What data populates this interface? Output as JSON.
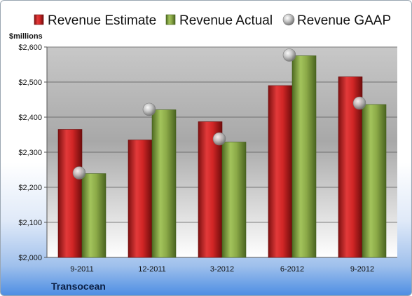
{
  "chart_data": {
    "type": "bar",
    "company": "Transocean",
    "ylabel": "$millions",
    "categories": [
      "9-2011",
      "12-2011",
      "3-2012",
      "6-2012",
      "9-2012"
    ],
    "ylim": [
      2000,
      2600
    ],
    "y_ticks": [
      "$2,000",
      "$2,100",
      "$2,200",
      "$2,300",
      "$2,400",
      "$2,500",
      "$2,600"
    ],
    "grid": true,
    "legend_position": "top",
    "series": [
      {
        "name": "Revenue Estimate",
        "kind": "bar",
        "color": "#d42a2a",
        "values": [
          2365,
          2335,
          2387,
          2490,
          2515
        ]
      },
      {
        "name": "Revenue Actual",
        "kind": "bar",
        "color": "#8fb04a",
        "values": [
          2239,
          2421,
          2329,
          2575,
          2436
        ]
      },
      {
        "name": "Revenue GAAP",
        "kind": "marker",
        "color": "#b8b8b8",
        "values": [
          2241,
          2422,
          2338,
          2577,
          2440
        ]
      }
    ]
  }
}
